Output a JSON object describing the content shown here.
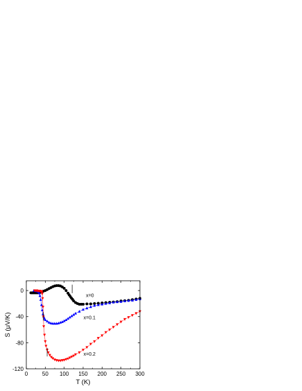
{
  "chart_data": {
    "type": "scatter",
    "xlabel": "T (K)",
    "ylabel": "S (μV/K)",
    "xlim": [
      0,
      300
    ],
    "ylim": [
      -120,
      15
    ],
    "xticks": [
      0,
      50,
      100,
      150,
      200,
      250,
      300
    ],
    "yticks": [
      0,
      -40,
      -80,
      -120
    ],
    "grid": false,
    "legend": "none",
    "series": [
      {
        "name": "x=0",
        "marker": "circle",
        "color": "#000000",
        "x": [
          12,
          15,
          18,
          21,
          24,
          27,
          30,
          33,
          36,
          40,
          45,
          50,
          55,
          60,
          65,
          70,
          75,
          80,
          85,
          90,
          95,
          100,
          105,
          110,
          113,
          116,
          119,
          122,
          125,
          130,
          135,
          140,
          145,
          150,
          160,
          170,
          180,
          190,
          200,
          210,
          220,
          230,
          240,
          250,
          260,
          270,
          280,
          290,
          300
        ],
        "y": [
          -3.5,
          -3.5,
          -3.5,
          -3.5,
          -3.5,
          -3.5,
          -3.5,
          -3.5,
          -3,
          -2,
          -1,
          0,
          1.5,
          3,
          4.5,
          6,
          7,
          7.5,
          7.5,
          7,
          5.5,
          3.5,
          0,
          -4,
          -6.5,
          -9,
          -11.5,
          -13.5,
          -16,
          -18.5,
          -20,
          -21,
          -21,
          -21,
          -20.5,
          -20.5,
          -20,
          -19.5,
          -19,
          -18.5,
          -18,
          -17.5,
          -17,
          -16,
          -15.5,
          -15,
          -14,
          -13,
          -12
        ]
      },
      {
        "name": "x=0.1",
        "marker": "triangle-up",
        "color": "#0000ff",
        "x": [
          20,
          24,
          28,
          32,
          34,
          36,
          38,
          40,
          42,
          44,
          46,
          48,
          50,
          55,
          60,
          65,
          70,
          75,
          80,
          85,
          90,
          95,
          100,
          105,
          110,
          115,
          120,
          125,
          130,
          140,
          150,
          160,
          170,
          180,
          190,
          200,
          210,
          220,
          230,
          240,
          250,
          260,
          270,
          280,
          290,
          300
        ],
        "y": [
          0,
          -0.5,
          -1,
          -2,
          -4,
          -8,
          -14,
          -22,
          -30,
          -36,
          -40,
          -43,
          -45,
          -47,
          -49,
          -50,
          -50.5,
          -50.5,
          -50.5,
          -50,
          -49,
          -48,
          -46.5,
          -45,
          -43,
          -41,
          -39,
          -37,
          -35,
          -32,
          -29,
          -27,
          -25,
          -23,
          -22,
          -21,
          -20,
          -19,
          -18,
          -17.5,
          -17,
          -16,
          -15.5,
          -15,
          -14,
          -13
        ]
      },
      {
        "name": "x=0.2",
        "marker": "triangle-down",
        "color": "#ff0000",
        "x": [
          22,
          24,
          26,
          28,
          30,
          32,
          34,
          36,
          38,
          40,
          41,
          42,
          43,
          44,
          45,
          46,
          48,
          50,
          52,
          55,
          58,
          62,
          66,
          70,
          75,
          80,
          85,
          90,
          95,
          100,
          105,
          110,
          115,
          120,
          125,
          130,
          140,
          150,
          160,
          170,
          180,
          190,
          200,
          210,
          220,
          230,
          240,
          250,
          260,
          270,
          280,
          290,
          300
        ],
        "y": [
          0,
          0,
          0,
          0,
          -0.5,
          -0.5,
          -0.5,
          -0.5,
          -1,
          -1.5,
          -2,
          -5,
          -12,
          -25,
          -40,
          -55,
          -68,
          -78,
          -85,
          -91,
          -95,
          -99,
          -102,
          -104,
          -106,
          -107,
          -107.5,
          -107.5,
          -107,
          -106.5,
          -105.5,
          -104.5,
          -103,
          -101.5,
          -100,
          -98,
          -95,
          -91,
          -87,
          -82,
          -78,
          -73,
          -69,
          -64,
          -60,
          -56,
          -52,
          -48,
          -44,
          -41,
          -38,
          -35,
          -32
        ]
      }
    ],
    "annotations": [
      {
        "text": "x=0",
        "x": 168,
        "y": -10
      },
      {
        "text": "x=0.1",
        "x": 167,
        "y": -44
      },
      {
        "text": "x=0.2",
        "x": 167,
        "y": -100
      }
    ],
    "markers": [
      {
        "label": "transition-arrow",
        "x": 121,
        "y_from": 9,
        "y_to": -4
      },
      {
        "label": "transition-arrow",
        "x": 45,
        "y_from": -33,
        "y_to": -46
      },
      {
        "label": "transition-arrow",
        "x": 55,
        "y_from": -88,
        "y_to": -101
      }
    ]
  }
}
